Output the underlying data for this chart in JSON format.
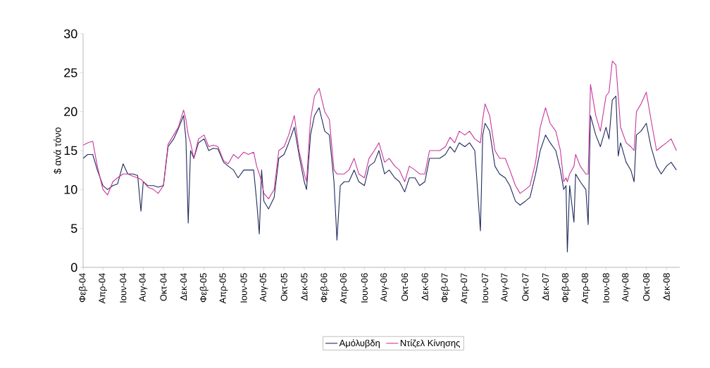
{
  "chart_data": {
    "type": "line",
    "ylabel": "$ ανά τόνο",
    "legend": "bottom",
    "marker": "none",
    "line_style": "solid",
    "ylim": [
      0,
      30
    ],
    "yticks": [
      0,
      5,
      10,
      15,
      20,
      25,
      30
    ],
    "xlim": [
      "2004-02-01",
      "2009-01-10"
    ],
    "xticks": [
      {
        "value": "2004-02-01",
        "label": "Φεβ-04"
      },
      {
        "value": "2004-04-01",
        "label": "Απρ-04"
      },
      {
        "value": "2004-06-01",
        "label": "Ιουν-04"
      },
      {
        "value": "2004-08-01",
        "label": "Αυγ-04"
      },
      {
        "value": "2004-10-01",
        "label": "Οκτ-04"
      },
      {
        "value": "2004-12-01",
        "label": "Δεκ-04"
      },
      {
        "value": "2005-02-01",
        "label": "Φεβ-05"
      },
      {
        "value": "2005-04-01",
        "label": "Απρ-05"
      },
      {
        "value": "2005-06-01",
        "label": "Ιουν-05"
      },
      {
        "value": "2005-08-01",
        "label": "Αυγ-05"
      },
      {
        "value": "2005-10-01",
        "label": "Οκτ-05"
      },
      {
        "value": "2005-12-01",
        "label": "Δεκ-05"
      },
      {
        "value": "2006-02-01",
        "label": "Φεβ-06"
      },
      {
        "value": "2006-04-01",
        "label": "Απρ-06"
      },
      {
        "value": "2006-06-01",
        "label": "Ιουν-06"
      },
      {
        "value": "2006-08-01",
        "label": "Αυγ-06"
      },
      {
        "value": "2006-10-01",
        "label": "Οκτ-06"
      },
      {
        "value": "2006-12-01",
        "label": "Δεκ-06"
      },
      {
        "value": "2007-02-01",
        "label": "Φεβ-07"
      },
      {
        "value": "2007-04-01",
        "label": "Απρ-07"
      },
      {
        "value": "2007-06-01",
        "label": "Ιουν-07"
      },
      {
        "value": "2007-08-01",
        "label": "Αυγ-07"
      },
      {
        "value": "2007-10-01",
        "label": "Οκτ-07"
      },
      {
        "value": "2007-12-01",
        "label": "Δεκ-07"
      },
      {
        "value": "2008-02-01",
        "label": "Φεβ-08"
      },
      {
        "value": "2008-04-01",
        "label": "Απρ-08"
      },
      {
        "value": "2008-06-01",
        "label": "Ιουν-08"
      },
      {
        "value": "2008-08-01",
        "label": "Αυγ-08"
      },
      {
        "value": "2008-10-01",
        "label": "Οκτ-08"
      },
      {
        "value": "2008-12-01",
        "label": "Δεκ-08"
      }
    ],
    "x": [
      "2004-02-01",
      "2004-02-15",
      "2004-03-01",
      "2004-03-15",
      "2004-04-01",
      "2004-04-15",
      "2004-05-01",
      "2004-05-15",
      "2004-06-01",
      "2004-06-15",
      "2004-07-01",
      "2004-07-15",
      "2004-07-25",
      "2004-08-01",
      "2004-08-15",
      "2004-09-01",
      "2004-09-15",
      "2004-10-01",
      "2004-10-15",
      "2004-11-01",
      "2004-11-15",
      "2004-12-01",
      "2004-12-08",
      "2004-12-15",
      "2004-12-22",
      "2005-01-01",
      "2005-01-15",
      "2005-02-01",
      "2005-02-15",
      "2005-03-01",
      "2005-03-15",
      "2005-04-01",
      "2005-04-15",
      "2005-05-01",
      "2005-05-15",
      "2005-06-01",
      "2005-06-15",
      "2005-07-01",
      "2005-07-10",
      "2005-07-18",
      "2005-07-25",
      "2005-08-01",
      "2005-08-15",
      "2005-09-01",
      "2005-09-15",
      "2005-10-01",
      "2005-10-15",
      "2005-11-01",
      "2005-11-15",
      "2005-12-01",
      "2005-12-08",
      "2005-12-20",
      "2006-01-01",
      "2006-01-15",
      "2006-02-01",
      "2006-02-15",
      "2006-03-01",
      "2006-03-10",
      "2006-03-20",
      "2006-04-01",
      "2006-04-15",
      "2006-05-01",
      "2006-05-15",
      "2006-06-01",
      "2006-06-15",
      "2006-07-01",
      "2006-07-15",
      "2006-08-01",
      "2006-08-15",
      "2006-09-01",
      "2006-09-15",
      "2006-10-01",
      "2006-10-15",
      "2006-11-01",
      "2006-11-15",
      "2006-12-01",
      "2006-12-15",
      "2007-01-01",
      "2007-01-15",
      "2007-02-01",
      "2007-02-15",
      "2007-03-01",
      "2007-03-15",
      "2007-04-01",
      "2007-04-15",
      "2007-05-01",
      "2007-05-18",
      "2007-05-25",
      "2007-06-01",
      "2007-06-15",
      "2007-07-01",
      "2007-07-15",
      "2007-08-01",
      "2007-08-15",
      "2007-09-01",
      "2007-09-15",
      "2007-10-01",
      "2007-10-15",
      "2007-11-01",
      "2007-11-15",
      "2007-12-01",
      "2007-12-15",
      "2008-01-01",
      "2008-01-15",
      "2008-01-25",
      "2008-02-01",
      "2008-02-05",
      "2008-02-12",
      "2008-02-25",
      "2008-03-01",
      "2008-03-15",
      "2008-04-01",
      "2008-04-08",
      "2008-04-15",
      "2008-05-01",
      "2008-05-15",
      "2008-06-01",
      "2008-06-10",
      "2008-06-20",
      "2008-07-01",
      "2008-07-08",
      "2008-07-15",
      "2008-08-01",
      "2008-08-15",
      "2008-08-25",
      "2008-09-01",
      "2008-09-15",
      "2008-10-01",
      "2008-10-15",
      "2008-11-01",
      "2008-11-15",
      "2008-12-01",
      "2008-12-15",
      "2008-12-31"
    ],
    "series": [
      {
        "name": "Αμόλυβδη",
        "color": "#1f2a5c",
        "values": [
          14,
          14.5,
          14.5,
          12.5,
          10.5,
          10,
          10.5,
          10.7,
          13.3,
          12,
          12,
          11.8,
          7.2,
          11,
          10.5,
          10.5,
          10.3,
          10.5,
          15.5,
          16.5,
          17.8,
          19.5,
          16.5,
          5.7,
          15,
          14,
          16,
          16.5,
          15,
          15.3,
          15.2,
          13.5,
          13,
          12.5,
          11.5,
          12.5,
          12.5,
          12.5,
          8.5,
          4.3,
          12.5,
          8.5,
          7.5,
          9,
          14,
          14.5,
          16,
          18,
          14.5,
          11,
          10,
          17,
          19.5,
          20.5,
          17.5,
          17,
          11,
          3.5,
          10.5,
          11,
          11,
          12.5,
          11,
          10.5,
          13,
          13.5,
          15,
          12,
          12.5,
          11.5,
          11,
          9.7,
          11.5,
          11.5,
          10.5,
          11,
          14,
          14,
          14,
          14.5,
          15.5,
          14.8,
          16,
          15.5,
          16,
          15,
          4.7,
          17,
          18.5,
          17.5,
          13,
          12,
          11.5,
          10.5,
          8.5,
          8,
          8.5,
          9,
          12,
          15,
          17,
          16,
          15,
          12.5,
          10,
          10.5,
          2,
          10.5,
          5.8,
          12,
          11,
          10,
          5.5,
          19.5,
          17,
          15.5,
          18,
          16.5,
          21.5,
          22,
          14.3,
          16,
          13.5,
          12.5,
          11,
          17,
          17.5,
          18.5,
          15.5,
          13,
          12,
          13,
          13.5,
          12.5
        ]
      },
      {
        "name": "Ντίζελ Κίνησης",
        "color": "#c8369a",
        "values": [
          15.7,
          16,
          16.2,
          13,
          10,
          9.3,
          11,
          11.5,
          12,
          12,
          11.7,
          11.5,
          11.3,
          11,
          10.3,
          10,
          9.5,
          10.5,
          15.8,
          17,
          18,
          20.2,
          19,
          17,
          16,
          14,
          16.5,
          17,
          15.5,
          15.7,
          15.5,
          13.7,
          13.3,
          14.5,
          14,
          14.8,
          14.5,
          14.8,
          13,
          12,
          11,
          9.5,
          8.8,
          10,
          15,
          15.5,
          17,
          19.5,
          15,
          12,
          11,
          19,
          22,
          23,
          20,
          19,
          12.5,
          12,
          12,
          12,
          12.5,
          14,
          12,
          11.5,
          14,
          15,
          16,
          13.5,
          14,
          13,
          12.5,
          11,
          13,
          12.5,
          12,
          12,
          15,
          15,
          15,
          15.5,
          16.7,
          16,
          17.5,
          17,
          17.5,
          16.5,
          16,
          19,
          21,
          19.5,
          15,
          14,
          14,
          12.5,
          10.5,
          9.5,
          10,
          10.5,
          13.5,
          18,
          20.5,
          18.5,
          17.5,
          15,
          11,
          11.5,
          11,
          12,
          13,
          14.5,
          13,
          12,
          12,
          23.5,
          19.5,
          17.5,
          22,
          22.5,
          26.5,
          26,
          22,
          18,
          16,
          15.5,
          15,
          20,
          21,
          22.5,
          19,
          15,
          15.5,
          16,
          16.5,
          15
        ]
      }
    ]
  }
}
